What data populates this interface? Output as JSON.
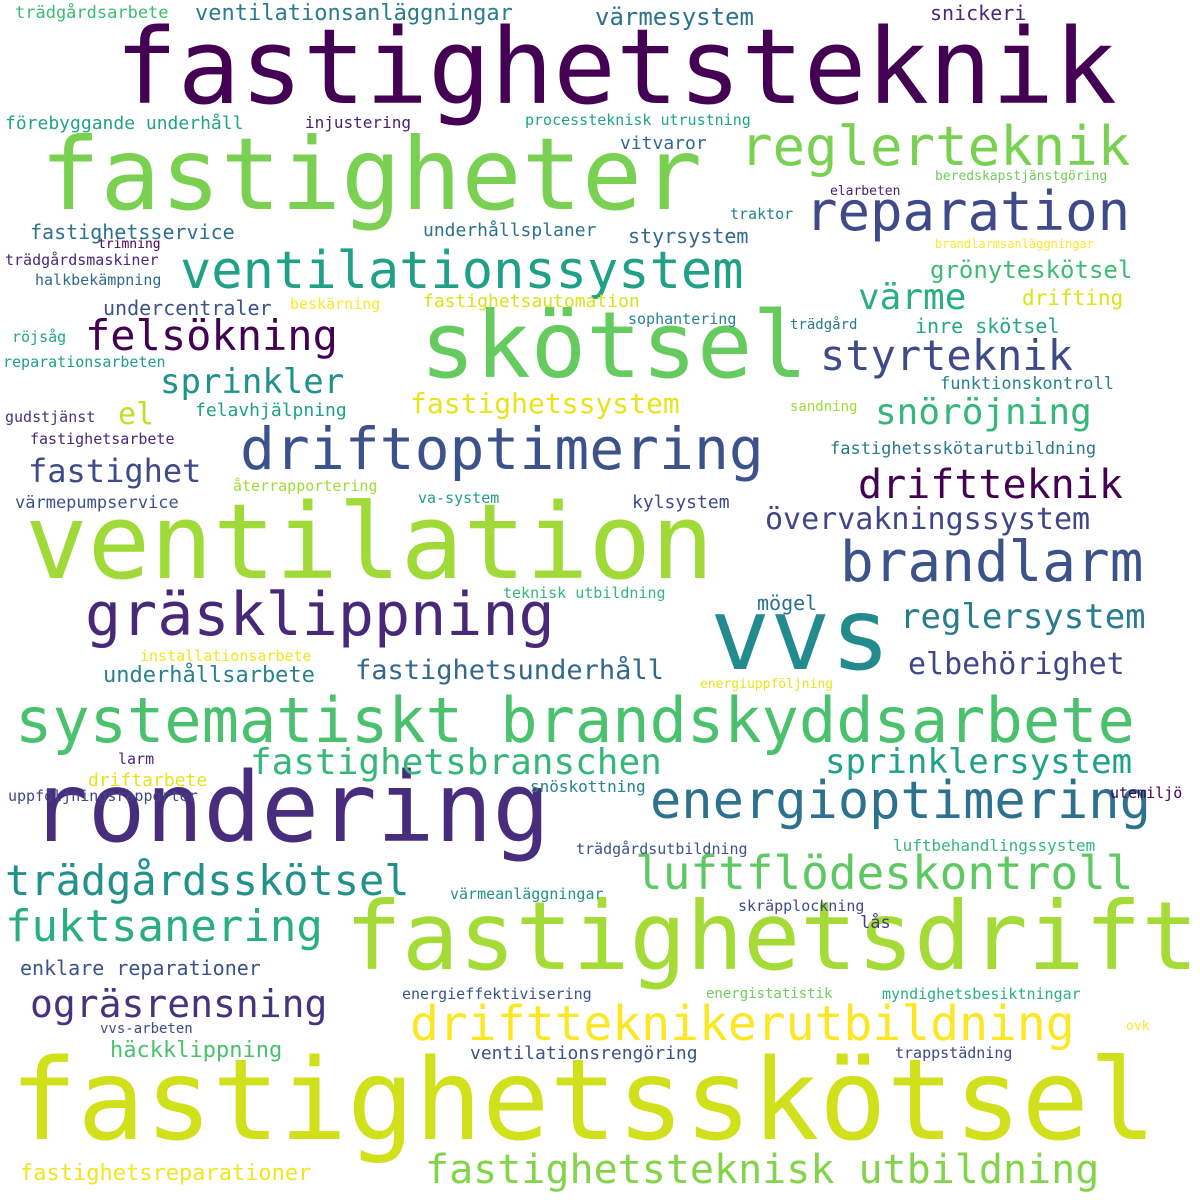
{
  "words": [
    {
      "text": "fastighetsteknik",
      "color": "#440154"
    },
    {
      "text": "fastigheter",
      "color": "#7ad151"
    },
    {
      "text": "ventilation",
      "color": "#a0da39"
    },
    {
      "text": "fastighetsskötsel",
      "color": "#d0e11c"
    },
    {
      "text": "rondering",
      "color": "#472d7b"
    },
    {
      "text": "fastighetsdrift",
      "color": "#a5db36"
    },
    {
      "text": "skötsel",
      "color": "#65cb5e"
    },
    {
      "text": "vvs",
      "color": "#238a8d"
    },
    {
      "text": "systematiskt brandskyddsarbete",
      "color": "#4ac16d"
    },
    {
      "text": "ventilationssystem",
      "color": "#1fa187"
    },
    {
      "text": "driftoptimering",
      "color": "#3b528b"
    },
    {
      "text": "reglerteknik",
      "color": "#7ad151"
    },
    {
      "text": "reparation",
      "color": "#3e4a89"
    },
    {
      "text": "gräsklippning",
      "color": "#482878"
    },
    {
      "text": "brandlarm",
      "color": "#3b528b"
    },
    {
      "text": "energioptimering",
      "color": "#2c728e"
    },
    {
      "text": "luftflödeskontroll",
      "color": "#5ec962"
    },
    {
      "text": "driftteknikerutbildning",
      "color": "#fde725"
    },
    {
      "text": "fastighetsteknisk utbildning",
      "color": "#84d44b"
    },
    {
      "text": "trädgårdsskötsel",
      "color": "#21918c"
    },
    {
      "text": "fuktsanering",
      "color": "#28ae80"
    },
    {
      "text": "ogräsrensning",
      "color": "#46337e"
    },
    {
      "text": "styrteknik",
      "color": "#3e4a89"
    },
    {
      "text": "felsökning",
      "color": "#440154"
    },
    {
      "text": "driftteknik",
      "color": "#440154"
    },
    {
      "text": "övervakningssystem",
      "color": "#3f4788"
    },
    {
      "text": "fastighetsbranschen",
      "color": "#35b779"
    },
    {
      "text": "sprinklersystem",
      "color": "#1fa187"
    },
    {
      "text": "snöröjning",
      "color": "#35b779"
    },
    {
      "text": "reglersystem",
      "color": "#287c8e"
    },
    {
      "text": "elbehörighet",
      "color": "#3f4788"
    },
    {
      "text": "värme",
      "color": "#2ab07f"
    },
    {
      "text": "fastighet",
      "color": "#3e4a89"
    },
    {
      "text": "sprinkler",
      "color": "#21918c"
    },
    {
      "text": "fastighetssystem",
      "color": "#e8e419"
    },
    {
      "text": "fastighetsunderhåll",
      "color": "#31688e"
    },
    {
      "text": "underhållsarbete",
      "color": "#26828e"
    },
    {
      "text": "grönyteskötsel",
      "color": "#3dbc74"
    },
    {
      "text": "fastighetsreparationer",
      "color": "#f1e51d"
    },
    {
      "text": "häckklippning",
      "color": "#4ac16d"
    },
    {
      "text": "ventilationsrengöring",
      "color": "#3b528b"
    },
    {
      "text": "enklare reparationer",
      "color": "#3b528b"
    },
    {
      "text": "värmesystem",
      "color": "#2c728e"
    },
    {
      "text": "ventilationsanläggningar",
      "color": "#287c8e"
    },
    {
      "text": "snickeri",
      "color": "#482878"
    },
    {
      "text": "trädgårdsarbete",
      "color": "#3dbc74"
    },
    {
      "text": "förebyggande underhåll",
      "color": "#20a386"
    },
    {
      "text": "injustering",
      "color": "#481f70"
    },
    {
      "text": "processteknisk utrustning",
      "color": "#20a486"
    },
    {
      "text": "vitvaror",
      "color": "#31688e"
    },
    {
      "text": "beredskapstjänstgöring",
      "color": "#6ece58"
    },
    {
      "text": "elarbeten",
      "color": "#481f70"
    },
    {
      "text": "traktor",
      "color": "#26828e"
    },
    {
      "text": "fastighetsservice",
      "color": "#2c728e"
    },
    {
      "text": "underhållsplaner",
      "color": "#2c728e"
    },
    {
      "text": "styrsystem",
      "color": "#31688e"
    },
    {
      "text": "trimning",
      "color": "#440154"
    },
    {
      "text": "brandlarmsanläggningar",
      "color": "#fde725"
    },
    {
      "text": "trädgårdsmaskiner",
      "color": "#482878"
    },
    {
      "text": "halkbekämpning",
      "color": "#31688e"
    },
    {
      "text": "undercentraler",
      "color": "#3b528b"
    },
    {
      "text": "beskärning",
      "color": "#fde725"
    },
    {
      "text": "fastighetsautomation",
      "color": "#d8e219"
    },
    {
      "text": "drifting",
      "color": "#dde318"
    },
    {
      "text": "sophantering",
      "color": "#26828e"
    },
    {
      "text": "trädgård",
      "color": "#2a788e"
    },
    {
      "text": "inre skötsel",
      "color": "#22a884"
    },
    {
      "text": "röjsåg",
      "color": "#22a884"
    },
    {
      "text": "reparationsarbeten",
      "color": "#1f9e89"
    },
    {
      "text": "funktionskontroll",
      "color": "#26828e"
    },
    {
      "text": "el",
      "color": "#bddf26"
    },
    {
      "text": "felavhjälpning",
      "color": "#1fa187"
    },
    {
      "text": "sandning",
      "color": "#a0da39"
    },
    {
      "text": "gudstjänst",
      "color": "#46337e"
    },
    {
      "text": "fastighetsarbete",
      "color": "#482878"
    },
    {
      "text": "fastighetsskötarutbildning",
      "color": "#2a788e"
    },
    {
      "text": "återrapportering",
      "color": "#a0da39"
    },
    {
      "text": "värmepumpservice",
      "color": "#3b528b"
    },
    {
      "text": "va-system",
      "color": "#1fa187"
    },
    {
      "text": "kylsystem",
      "color": "#3e4a89"
    },
    {
      "text": "teknisk utbildning",
      "color": "#35b779"
    },
    {
      "text": "mögel",
      "color": "#2c728e"
    },
    {
      "text": "installationsarbete",
      "color": "#f1e51d"
    },
    {
      "text": "energiuppföljning",
      "color": "#e8e419"
    },
    {
      "text": "larm",
      "color": "#482878"
    },
    {
      "text": "driftarbete",
      "color": "#e5e419"
    },
    {
      "text": "uppföljningsrapporter",
      "color": "#3f4788"
    },
    {
      "text": "snöskottning",
      "color": "#26828e"
    },
    {
      "text": "utemiljö",
      "color": "#440154"
    },
    {
      "text": "trädgårdsutbildning",
      "color": "#3b528b"
    },
    {
      "text": "luftbehandlingssystem",
      "color": "#35b779"
    },
    {
      "text": "värmeanläggningar",
      "color": "#21918c"
    },
    {
      "text": "skräpplockning",
      "color": "#3e4a89"
    },
    {
      "text": "lås",
      "color": "#443a83"
    },
    {
      "text": "energieffektivisering",
      "color": "#3b528b"
    },
    {
      "text": "energistatistik",
      "color": "#6ece58"
    },
    {
      "text": "myndighetsbesiktningar",
      "color": "#2ab07f"
    },
    {
      "text": "vvs-arbeten",
      "color": "#3e4a89"
    },
    {
      "text": "ovk",
      "color": "#fde725"
    },
    {
      "text": "trappstädning",
      "color": "#3f4788"
    }
  ]
}
